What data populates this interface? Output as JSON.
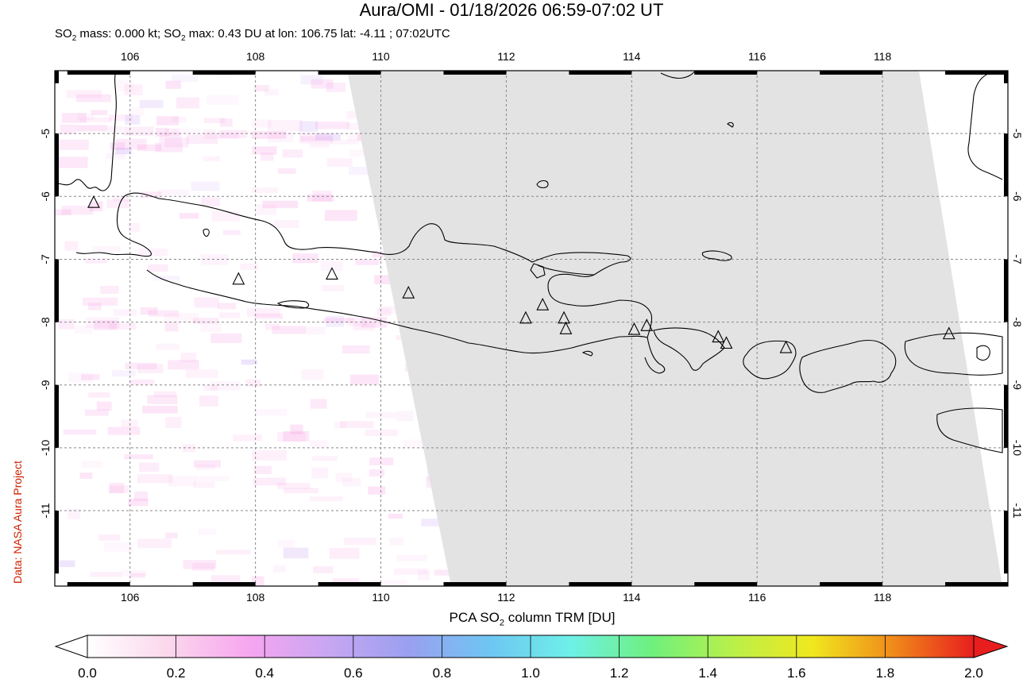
{
  "header": {
    "title": "Aura/OMI - 01/18/2026 06:59-07:02 UT",
    "subtitle_prefix": "SO",
    "subtitle_sub1": "2",
    "subtitle_mid": " mass: 0.000 kt; SO",
    "subtitle_sub2": "2",
    "subtitle_rest": " max: 0.43 DU at lon: 106.75 lat: -4.11 ; 07:02UTC"
  },
  "credit": "Data: NASA Aura Project",
  "map": {
    "lon_range": [
      104.8,
      120.0
    ],
    "lat_range": [
      -12.2,
      -4.0
    ],
    "lon_ticks": [
      "106",
      "108",
      "110",
      "112",
      "114",
      "116",
      "118"
    ],
    "lat_ticks": [
      "-5",
      "-6",
      "-7",
      "-8",
      "-9",
      "-10",
      "-11"
    ],
    "grid": true,
    "no_data_color": "#e3e3e3",
    "volcano_markers": [
      {
        "lon": 105.42,
        "lat": -6.1
      },
      {
        "lon": 107.73,
        "lat": -7.32
      },
      {
        "lon": 109.22,
        "lat": -7.24
      },
      {
        "lon": 110.44,
        "lat": -7.54
      },
      {
        "lon": 112.31,
        "lat": -7.94
      },
      {
        "lon": 112.58,
        "lat": -7.73
      },
      {
        "lon": 112.92,
        "lat": -7.94
      },
      {
        "lon": 112.95,
        "lat": -8.11
      },
      {
        "lon": 114.04,
        "lat": -8.12
      },
      {
        "lon": 114.24,
        "lat": -8.06
      },
      {
        "lon": 115.38,
        "lat": -8.24
      },
      {
        "lon": 115.51,
        "lat": -8.34
      },
      {
        "lon": 116.46,
        "lat": -8.41
      },
      {
        "lon": 119.06,
        "lat": -8.19
      }
    ]
  },
  "colorbar": {
    "title_prefix": "PCA SO",
    "title_sub": "2",
    "title_rest": " column TRM [DU]",
    "tick_labels": [
      "0.0",
      "0.2",
      "0.4",
      "0.6",
      "0.8",
      "1.0",
      "1.2",
      "1.4",
      "1.6",
      "1.8",
      "2.0"
    ],
    "stops": [
      "#ffffff",
      "#fbd7ec",
      "#f7a6f0",
      "#c7a6f2",
      "#9aa0f0",
      "#6ec6f2",
      "#6ef0e8",
      "#6ef07e",
      "#b9f04a",
      "#f0e81e",
      "#f08a1a",
      "#e81e1e"
    ]
  }
}
